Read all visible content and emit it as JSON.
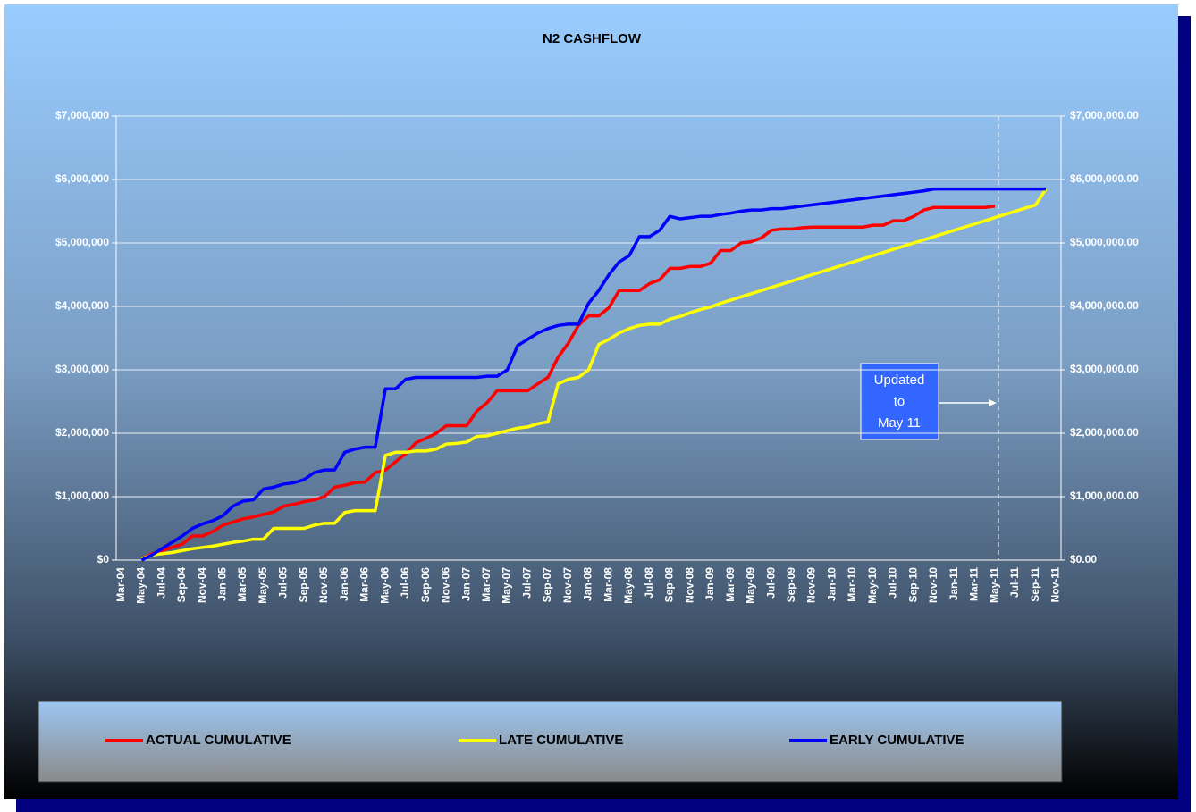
{
  "chart_data": {
    "type": "line",
    "title": "N2 CASHFLOW",
    "categories": [
      "Mar-04",
      null,
      "May-04",
      null,
      "Jul-04",
      null,
      "Sep-04",
      null,
      "Nov-04",
      null,
      "Jan-05",
      null,
      "Mar-05",
      null,
      "May-05",
      null,
      "Jul-05",
      null,
      "Sep-05",
      null,
      "Nov-05",
      null,
      "Jan-06",
      null,
      "Mar-06",
      null,
      "May-06",
      null,
      "Jul-06",
      null,
      "Sep-06",
      null,
      "Nov-06",
      null,
      "Jan-07",
      null,
      "Mar-07",
      null,
      "May-07",
      null,
      "Jul-07",
      null,
      "Sep-07",
      null,
      "Nov-07",
      null,
      "Jan-08",
      null,
      "Mar-08",
      null,
      "May-08",
      null,
      "Jul-08",
      null,
      "Sep-08",
      null,
      "Nov-08",
      null,
      "Jan-09",
      null,
      "Mar-09",
      null,
      "May-09",
      null,
      "Jul-09",
      null,
      "Sep-09",
      null,
      "Nov-09",
      null,
      "Jan-10",
      null,
      "Mar-10",
      null,
      "May-10",
      null,
      "Jul-10",
      null,
      "Sep-10",
      null,
      "Nov-10",
      null,
      "Jan-11",
      null,
      "Mar-11",
      null,
      "May-11",
      null,
      "Jul-11",
      null,
      "Sep-11",
      null,
      "Nov-11"
    ],
    "series": [
      {
        "name": "ACTUAL CUMULATIVE",
        "color": "#ff0000",
        "values": [
          null,
          null,
          20000,
          100000,
          150000,
          200000,
          250000,
          380000,
          380000,
          450000,
          550000,
          600000,
          650000,
          680000,
          720000,
          760000,
          850000,
          880000,
          920000,
          950000,
          1000000,
          1150000,
          1180000,
          1220000,
          1230000,
          1380000,
          1420000,
          1550000,
          1680000,
          1850000,
          1920000,
          2000000,
          2120000,
          2120000,
          2120000,
          2350000,
          2480000,
          2670000,
          2670000,
          2670000,
          2670000,
          2780000,
          2880000,
          3200000,
          3420000,
          3700000,
          3850000,
          3850000,
          3980000,
          4250000,
          4250000,
          4250000,
          4360000,
          4420000,
          4600000,
          4600000,
          4630000,
          4630000,
          4680000,
          4880000,
          4880000,
          5000000,
          5020000,
          5080000,
          5200000,
          5220000,
          5220000,
          5240000,
          5250000,
          5250000,
          5250000,
          5250000,
          5250000,
          5250000,
          5280000,
          5280000,
          5350000,
          5350000,
          5420000,
          5520000,
          5560000,
          5560000,
          5560000,
          5560000,
          5560000,
          5560000,
          5580000,
          null,
          null,
          null,
          null,
          null,
          null
        ]
      },
      {
        "name": "LATE CUMULATIVE",
        "color": "#ffff00",
        "values": [
          null,
          null,
          20000,
          80000,
          100000,
          120000,
          150000,
          180000,
          200000,
          220000,
          250000,
          280000,
          300000,
          330000,
          330000,
          500000,
          500000,
          500000,
          500000,
          550000,
          580000,
          580000,
          750000,
          780000,
          780000,
          780000,
          1650000,
          1700000,
          1700000,
          1720000,
          1720000,
          1750000,
          1830000,
          1840000,
          1860000,
          1950000,
          1960000,
          2000000,
          2040000,
          2080000,
          2100000,
          2150000,
          2180000,
          2780000,
          2850000,
          2880000,
          3000000,
          3400000,
          3480000,
          3580000,
          3650000,
          3700000,
          3720000,
          3720000,
          3800000,
          3840000,
          3900000,
          3950000,
          3990000,
          4050000,
          4100000,
          4150000,
          4200000,
          4250000,
          4300000,
          4350000,
          4400000,
          4450000,
          4500000,
          4550000,
          4600000,
          4650000,
          4700000,
          4750000,
          4800000,
          4850000,
          4900000,
          4950000,
          5000000,
          5050000,
          5100000,
          5150000,
          5200000,
          5250000,
          5300000,
          5350000,
          5400000,
          5450000,
          5500000,
          5550000,
          5600000,
          5850000,
          null
        ]
      },
      {
        "name": "EARLY CUMULATIVE",
        "color": "#0000ff",
        "values": [
          null,
          null,
          0,
          80000,
          180000,
          280000,
          380000,
          500000,
          570000,
          620000,
          700000,
          850000,
          930000,
          950000,
          1120000,
          1150000,
          1200000,
          1220000,
          1270000,
          1380000,
          1420000,
          1420000,
          1700000,
          1750000,
          1780000,
          1780000,
          2700000,
          2700000,
          2850000,
          2880000,
          2880000,
          2880000,
          2880000,
          2880000,
          2880000,
          2880000,
          2900000,
          2900000,
          3000000,
          3380000,
          3480000,
          3580000,
          3650000,
          3700000,
          3720000,
          3720000,
          4050000,
          4250000,
          4500000,
          4700000,
          4800000,
          5100000,
          5100000,
          5200000,
          5420000,
          5380000,
          5400000,
          5420000,
          5420000,
          5450000,
          5470000,
          5500000,
          5520000,
          5520000,
          5540000,
          5540000,
          5560000,
          5580000,
          5600000,
          5620000,
          5640000,
          5660000,
          5680000,
          5700000,
          5720000,
          5740000,
          5760000,
          5780000,
          5800000,
          5820000,
          5850000,
          5850000,
          5850000,
          5850000,
          5850000,
          5850000,
          5850000,
          5850000,
          5850000,
          5850000,
          5850000,
          5850000,
          null
        ]
      }
    ],
    "ylim": [
      0,
      7000000
    ],
    "yticks": [
      {
        "value": 0,
        "label": "$0"
      },
      {
        "value": 1000000,
        "label": "$1,000,000"
      },
      {
        "value": 2000000,
        "label": "$2,000,000"
      },
      {
        "value": 3000000,
        "label": "$3,000,000"
      },
      {
        "value": 4000000,
        "label": "$4,000,000"
      },
      {
        "value": 5000000,
        "label": "$5,000,000"
      },
      {
        "value": 6000000,
        "label": "$6,000,000"
      },
      {
        "value": 7000000,
        "label": "$7,000,000"
      }
    ],
    "y2lim": [
      0,
      7000000
    ],
    "y2ticks": [
      {
        "value": 0,
        "label": "$0.00"
      },
      {
        "value": 1000000,
        "label": "$1,000,000.00"
      },
      {
        "value": 2000000,
        "label": "$2,000,000.00"
      },
      {
        "value": 3000000,
        "label": "$3,000,000.00"
      },
      {
        "value": 4000000,
        "label": "$4,000,000.00"
      },
      {
        "value": 5000000,
        "label": "$5,000,000.00"
      },
      {
        "value": 6000000,
        "label": "$6,000,000.00"
      },
      {
        "value": 7000000,
        "label": "$7,000,000.00"
      }
    ],
    "grid": true,
    "legend": "bottom",
    "annotation": [
      "Updated",
      "to",
      "May 11"
    ]
  }
}
